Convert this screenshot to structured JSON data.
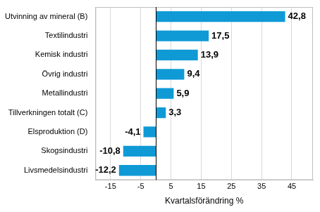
{
  "chart_data": {
    "type": "bar",
    "orientation": "horizontal",
    "x_label": "Kvartalsförändring %",
    "categories": [
      "Utvinning av mineral (B)",
      "Textilindustri",
      "Kemisk industri",
      "Övrig industri",
      "Metallindustri",
      "Tillverkningen totalt (C)",
      "Elsproduktion (D)",
      "Skogsindustri",
      "Livsmedelsindustri"
    ],
    "values": [
      42.8,
      17.5,
      13.9,
      9.4,
      5.9,
      3.3,
      -4.1,
      -10.8,
      -12.2
    ],
    "value_labels": [
      "42,8",
      "17,5",
      "13,9",
      "9,4",
      "5,9",
      "3,3",
      "-4,1",
      "-10,8",
      "-12,2"
    ],
    "color": "#0f9ad6",
    "xlim": [
      -20,
      52
    ],
    "xticks": [
      -15,
      -5,
      5,
      15,
      25,
      35,
      45
    ],
    "grid": true,
    "data_labels": true
  }
}
